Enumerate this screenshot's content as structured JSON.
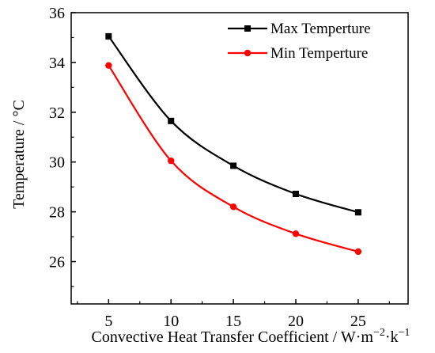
{
  "chart_data": {
    "type": "line",
    "x": [
      5,
      10,
      15,
      20,
      25
    ],
    "series": [
      {
        "name": "Max Temperture",
        "values": [
          35.05,
          31.65,
          29.85,
          28.72,
          27.98
        ],
        "color": "#000000",
        "marker": "square"
      },
      {
        "name": "Min Temperture",
        "values": [
          33.88,
          30.05,
          28.2,
          27.12,
          26.4
        ],
        "color": "#ff0000",
        "marker": "circle"
      }
    ],
    "xlabel": "Convective Heat Transfer Coefficient / W·m",
    "xlabel_sup1": "−2",
    "xlabel_mid": "·k",
    "xlabel_sup2": "−1",
    "ylabel": "Temperature / °C",
    "xlim": [
      2,
      29
    ],
    "ylim": [
      24.3,
      36
    ],
    "xticks": [
      "5",
      "10",
      "15",
      "20",
      "25"
    ],
    "yticks": [
      "26",
      "28",
      "30",
      "32",
      "34",
      "36"
    ],
    "legend_position": "top-right",
    "grid": false,
    "smooth": true
  }
}
